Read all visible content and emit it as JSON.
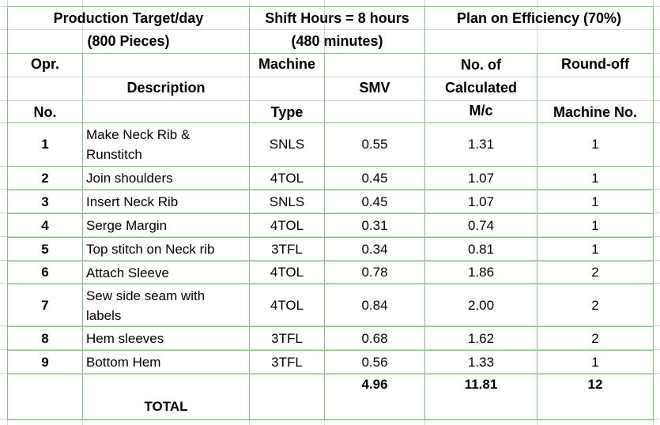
{
  "header": {
    "target_line1": "Production Target/day",
    "target_line2": "(800 Pieces)",
    "shift_line1": "Shift Hours = 8 hours",
    "shift_line2": "(480 minutes)",
    "plan": "Plan on  Efficiency (70%)"
  },
  "columns": {
    "opr_line1": "Opr.",
    "opr_line2": "No.",
    "description": "Description",
    "machine_line1": "Machine",
    "machine_line2": "Type",
    "smv": "SMV",
    "calc_line1": "No. of",
    "calc_line2": "Calculated",
    "calc_line3": "M/c",
    "round_line1": "Round-off",
    "round_line2": "Machine No."
  },
  "rows": [
    {
      "no": "1",
      "desc_line1": "Make Neck Rib &",
      "desc_line2": "Runstitch",
      "type": "SNLS",
      "smv": "0.55",
      "calc": "1.31",
      "round": "1"
    },
    {
      "no": "2",
      "desc": "Join shoulders",
      "type": "4TOL",
      "smv": "0.45",
      "calc": "1.07",
      "round": "1"
    },
    {
      "no": "3",
      "desc": "Insert Neck Rib",
      "type": "SNLS",
      "smv": "0.45",
      "calc": "1.07",
      "round": "1"
    },
    {
      "no": "4",
      "desc": "Serge Margin",
      "type": "4TOL",
      "smv": "0.31",
      "calc": "0.74",
      "round": "1"
    },
    {
      "no": "5",
      "desc": "Top stitch on Neck rib",
      "type": "3TFL",
      "smv": "0.34",
      "calc": "0.81",
      "round": "1"
    },
    {
      "no": "6",
      "desc": "Attach Sleeve",
      "type": "4TOL",
      "smv": "0.78",
      "calc": "1.86",
      "round": "2"
    },
    {
      "no": "7",
      "desc_line1": "Sew side seam with",
      "desc_line2": "labels",
      "type": "4TOL",
      "smv": "0.84",
      "calc": "2.00",
      "round": "2"
    },
    {
      "no": "8",
      "desc": "Hem sleeves",
      "type": "3TFL",
      "smv": "0.68",
      "calc": "1.62",
      "round": "2"
    },
    {
      "no": "9",
      "desc": "Bottom Hem",
      "type": "3TFL",
      "smv": "0.56",
      "calc": "1.33",
      "round": "1"
    }
  ],
  "total": {
    "label": "TOTAL",
    "smv": "4.96",
    "calc": "11.81",
    "round": "12"
  }
}
